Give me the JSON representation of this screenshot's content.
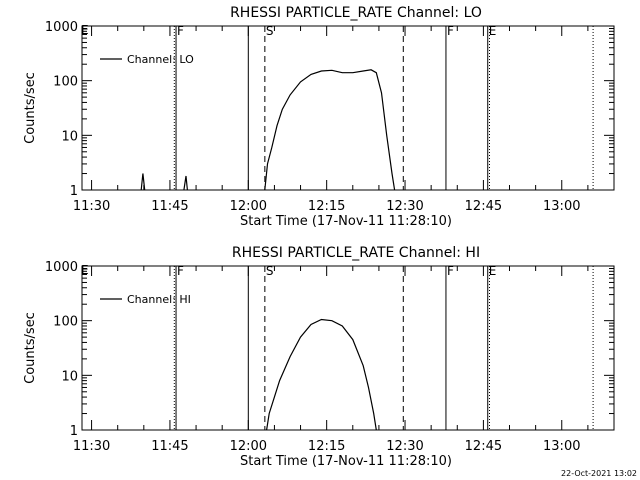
{
  "chart_data": [
    {
      "type": "line",
      "title": "RHESSI PARTICLE_RATE Channel: LO",
      "xlabel": "Start Time (17-Nov-11 11:28:10)",
      "ylabel": "Counts/sec",
      "y_scale": "log",
      "ylim": [
        1,
        1000
      ],
      "xlim": [
        "11:28:10",
        "13:10:00"
      ],
      "y_ticks": [
        "1",
        "10",
        "100",
        "1000"
      ],
      "x_ticks": [
        "11:30",
        "11:45",
        "12:00",
        "12:15",
        "12:30",
        "12:45",
        "13:00"
      ],
      "legend": "Channel: LO",
      "legend_position": "top-left",
      "series": [
        {
          "name": "Channel: LO",
          "segments": [
            [
              [
                "11:39:30",
                1
              ],
              [
                "11:39:50",
                2.0
              ],
              [
                "11:40:10",
                1
              ]
            ],
            [
              [
                "11:47:40",
                1
              ],
              [
                "11:48:05",
                1.8
              ],
              [
                "11:48:20",
                1
              ]
            ],
            [
              [
                "12:03:10",
                1
              ],
              [
                "12:03:40",
                3
              ],
              [
                "12:04:30",
                6
              ],
              [
                "12:05:30",
                15
              ],
              [
                "12:06:30",
                30
              ],
              [
                "12:08:00",
                55
              ],
              [
                "12:10:00",
                95
              ],
              [
                "12:12:00",
                130
              ],
              [
                "12:14:00",
                150
              ],
              [
                "12:16:00",
                155
              ],
              [
                "12:18:00",
                140
              ],
              [
                "12:20:00",
                140
              ],
              [
                "12:22:00",
                150
              ],
              [
                "12:23:30",
                158
              ],
              [
                "12:24:30",
                140
              ],
              [
                "12:25:30",
                60
              ],
              [
                "12:26:30",
                10
              ],
              [
                "12:27:30",
                2
              ],
              [
                "12:28:00",
                1
              ]
            ]
          ]
        }
      ],
      "markers": [
        {
          "label": "F",
          "time": "11:46:10",
          "style": "solid"
        },
        {
          "label": "",
          "time": "11:45:50",
          "style": "dotted"
        },
        {
          "label": "",
          "time": "12:00:00",
          "style": "solid"
        },
        {
          "label": "S",
          "time": "12:03:10",
          "style": "dashed"
        },
        {
          "label": "",
          "time": "12:29:40",
          "style": "dashed"
        },
        {
          "label": "F",
          "time": "12:37:50",
          "style": "solid"
        },
        {
          "label": "E",
          "time": "12:45:50",
          "style": "solid"
        },
        {
          "label": "",
          "time": "12:46:10",
          "style": "dotted"
        },
        {
          "label": "",
          "time": "13:06:00",
          "style": "dotted"
        }
      ],
      "left_edge_label": "E"
    },
    {
      "type": "line",
      "title": "RHESSI PARTICLE_RATE Channel: HI",
      "xlabel": "Start Time (17-Nov-11 11:28:10)",
      "ylabel": "Counts/sec",
      "y_scale": "log",
      "ylim": [
        1,
        1000
      ],
      "xlim": [
        "11:28:10",
        "13:10:00"
      ],
      "y_ticks": [
        "1",
        "10",
        "100",
        "1000"
      ],
      "x_ticks": [
        "11:30",
        "11:45",
        "12:00",
        "12:15",
        "12:30",
        "12:45",
        "13:00"
      ],
      "legend": "Channel: HI",
      "legend_position": "top-left",
      "series": [
        {
          "name": "Channel: HI",
          "segments": [
            [
              [
                "12:03:30",
                1
              ],
              [
                "12:04:00",
                2
              ],
              [
                "12:05:00",
                4
              ],
              [
                "12:06:00",
                8
              ],
              [
                "12:08:00",
                22
              ],
              [
                "12:10:00",
                50
              ],
              [
                "12:12:00",
                85
              ],
              [
                "12:14:00",
                105
              ],
              [
                "12:16:00",
                100
              ],
              [
                "12:18:00",
                80
              ],
              [
                "12:20:00",
                45
              ],
              [
                "12:22:00",
                15
              ],
              [
                "12:23:00",
                6
              ],
              [
                "12:24:00",
                2
              ],
              [
                "12:24:30",
                1
              ]
            ]
          ]
        }
      ],
      "markers": [
        {
          "label": "F",
          "time": "11:46:10",
          "style": "solid"
        },
        {
          "label": "",
          "time": "11:45:50",
          "style": "dotted"
        },
        {
          "label": "",
          "time": "12:00:00",
          "style": "solid"
        },
        {
          "label": "S",
          "time": "12:03:10",
          "style": "dashed"
        },
        {
          "label": "",
          "time": "12:29:40",
          "style": "dashed"
        },
        {
          "label": "F",
          "time": "12:37:50",
          "style": "solid"
        },
        {
          "label": "E",
          "time": "12:45:50",
          "style": "solid"
        },
        {
          "label": "",
          "time": "12:46:10",
          "style": "dotted"
        },
        {
          "label": "",
          "time": "13:06:00",
          "style": "dotted"
        }
      ],
      "left_edge_label": "E"
    }
  ],
  "footer": {
    "timestamp": "22-Oct-2021 13:02"
  }
}
